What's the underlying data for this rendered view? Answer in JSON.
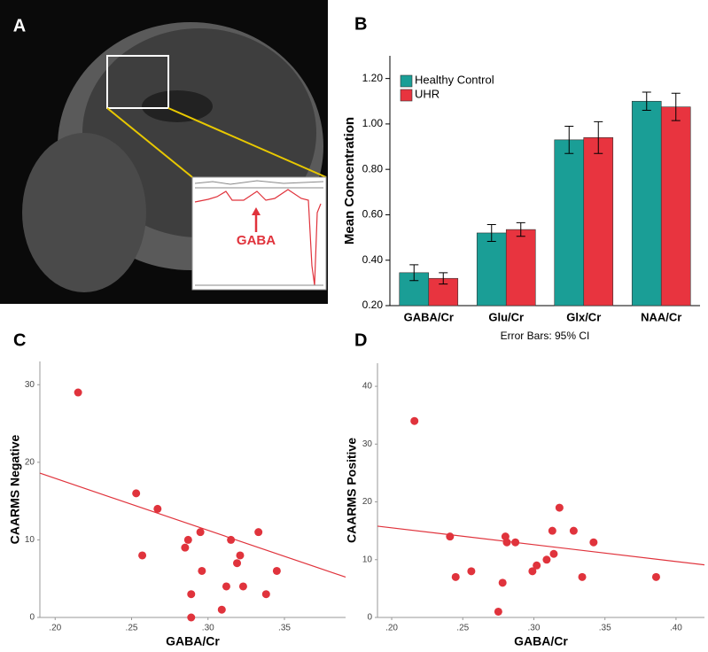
{
  "chart_data": [
    {
      "type": "image",
      "panel": "A",
      "annotation": "GABA"
    },
    {
      "type": "bar",
      "panel": "B",
      "ylabel": "Mean Concentration",
      "note": "Error Bars: 95% CI",
      "categories": [
        "GABA/Cr",
        "Glu/Cr",
        "Glx/Cr",
        "NAA/Cr"
      ],
      "series": [
        {
          "name": "Healthy Control",
          "color": "#1a9e96",
          "values": [
            0.345,
            0.52,
            0.93,
            1.1
          ],
          "errors": [
            0.035,
            0.037,
            0.06,
            0.04
          ]
        },
        {
          "name": "UHR",
          "color": "#e8343f",
          "values": [
            0.32,
            0.535,
            0.94,
            1.075
          ],
          "errors": [
            0.025,
            0.03,
            0.07,
            0.06
          ]
        }
      ],
      "ylim": [
        0.2,
        1.3
      ],
      "yticks": [
        {
          "value": 0.2,
          "label": "0.20"
        },
        {
          "value": 0.4,
          "label": "0.40"
        },
        {
          "value": 0.6,
          "label": "0.60"
        },
        {
          "value": 0.8,
          "label": "0.80"
        },
        {
          "value": 1.0,
          "label": "1.00"
        },
        {
          "value": 1.2,
          "label": "1.20"
        }
      ],
      "legend": "top-left"
    },
    {
      "type": "scatter",
      "panel": "C",
      "xlabel": "GABA/Cr",
      "ylabel": "CAARMS Negative",
      "color": "#e0333c",
      "x": [
        0.215,
        0.253,
        0.257,
        0.267,
        0.285,
        0.287,
        0.289,
        0.289,
        0.295,
        0.296,
        0.309,
        0.312,
        0.315,
        0.319,
        0.321,
        0.323,
        0.333,
        0.338,
        0.345
      ],
      "values": [
        29,
        16,
        8,
        14,
        9,
        10,
        3,
        0,
        11,
        6,
        1,
        4,
        10,
        7,
        8,
        4,
        11,
        3,
        6
      ],
      "fit": {
        "x": [
          0.19,
          0.39
        ],
        "y": [
          18.6,
          5.2
        ]
      },
      "xlim": [
        0.19,
        0.39
      ],
      "ylim": [
        0,
        33
      ],
      "xticks": [
        {
          "value": 0.2,
          "label": ".20"
        },
        {
          "value": 0.25,
          "label": ".25"
        },
        {
          "value": 0.3,
          "label": ".30"
        },
        {
          "value": 0.35,
          "label": ".35"
        }
      ],
      "yticks": [
        0,
        10,
        20,
        30
      ]
    },
    {
      "type": "scatter",
      "panel": "D",
      "xlabel": "GABA/Cr",
      "ylabel": "CAARMS Positive",
      "color": "#e0333c",
      "x": [
        0.216,
        0.241,
        0.245,
        0.256,
        0.275,
        0.278,
        0.28,
        0.281,
        0.287,
        0.299,
        0.302,
        0.309,
        0.313,
        0.314,
        0.318,
        0.328,
        0.334,
        0.342,
        0.386
      ],
      "values": [
        34,
        14,
        7,
        8,
        1,
        6,
        14,
        13,
        13,
        8,
        9,
        10,
        15,
        11,
        19,
        15,
        7,
        13,
        7
      ],
      "fit": {
        "x": [
          0.19,
          0.42
        ],
        "y": [
          15.8,
          9.1
        ]
      },
      "xlim": [
        0.19,
        0.42
      ],
      "ylim": [
        0,
        44
      ],
      "xticks": [
        {
          "value": 0.2,
          "label": ".20"
        },
        {
          "value": 0.25,
          "label": ".25"
        },
        {
          "value": 0.3,
          "label": ".30"
        },
        {
          "value": 0.35,
          "label": ".35"
        },
        {
          "value": 0.4,
          "label": ".40"
        }
      ],
      "yticks": [
        0,
        10,
        20,
        30,
        40
      ]
    }
  ]
}
